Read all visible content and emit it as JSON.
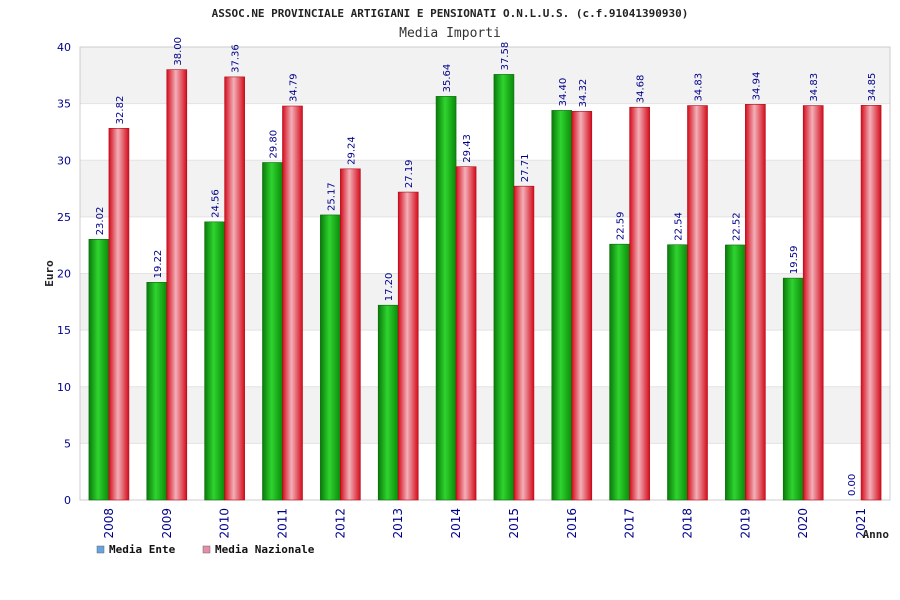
{
  "colors": {
    "ente": "#19b519",
    "nazionale": "#e2162c",
    "legend_ente": "#66a3e0",
    "legend_nazionale": "#e58fa6",
    "band": "#f2f2f2",
    "axis_text": "#00008b"
  },
  "chart_data": {
    "type": "bar",
    "title": "ASSOC.NE PROVINCIALE ARTIGIANI E PENSIONATI O.N.L.U.S. (c.f.91041390930)",
    "subtitle": "Media Importi",
    "ylabel": "Euro",
    "xlabel": "Anno",
    "ylim": [
      0,
      40
    ],
    "yticks": [
      0,
      5,
      10,
      15,
      20,
      25,
      30,
      35,
      40
    ],
    "grid": true,
    "legend_position": "bottom-left",
    "categories": [
      "2008",
      "2009",
      "2010",
      "2011",
      "2012",
      "2013",
      "2014",
      "2015",
      "2016",
      "2017",
      "2018",
      "2019",
      "2020",
      "2021"
    ],
    "series": [
      {
        "name": "Media Ente",
        "values": [
          23.02,
          19.22,
          24.56,
          29.8,
          25.17,
          17.2,
          35.64,
          37.58,
          34.4,
          22.59,
          22.54,
          22.52,
          19.59,
          0.0
        ],
        "labels": [
          "23.02",
          "19.22",
          "24.56",
          "29.80",
          "25.17",
          "17.20",
          "35.64",
          "37.58",
          "34.40",
          "22.59",
          "22.54",
          "22.52",
          "19.59",
          "0.00"
        ]
      },
      {
        "name": "Media Nazionale",
        "values": [
          32.82,
          38.0,
          37.36,
          34.79,
          29.24,
          27.19,
          29.43,
          27.71,
          34.32,
          34.68,
          34.83,
          34.94,
          34.83,
          34.85
        ],
        "labels": [
          "32.82",
          "38.00",
          "37.36",
          "34.79",
          "29.24",
          "27.19",
          "29.43",
          "27.71",
          "34.32",
          "34.68",
          "34.83",
          "34.94",
          "34.83",
          "34.85"
        ]
      }
    ]
  }
}
